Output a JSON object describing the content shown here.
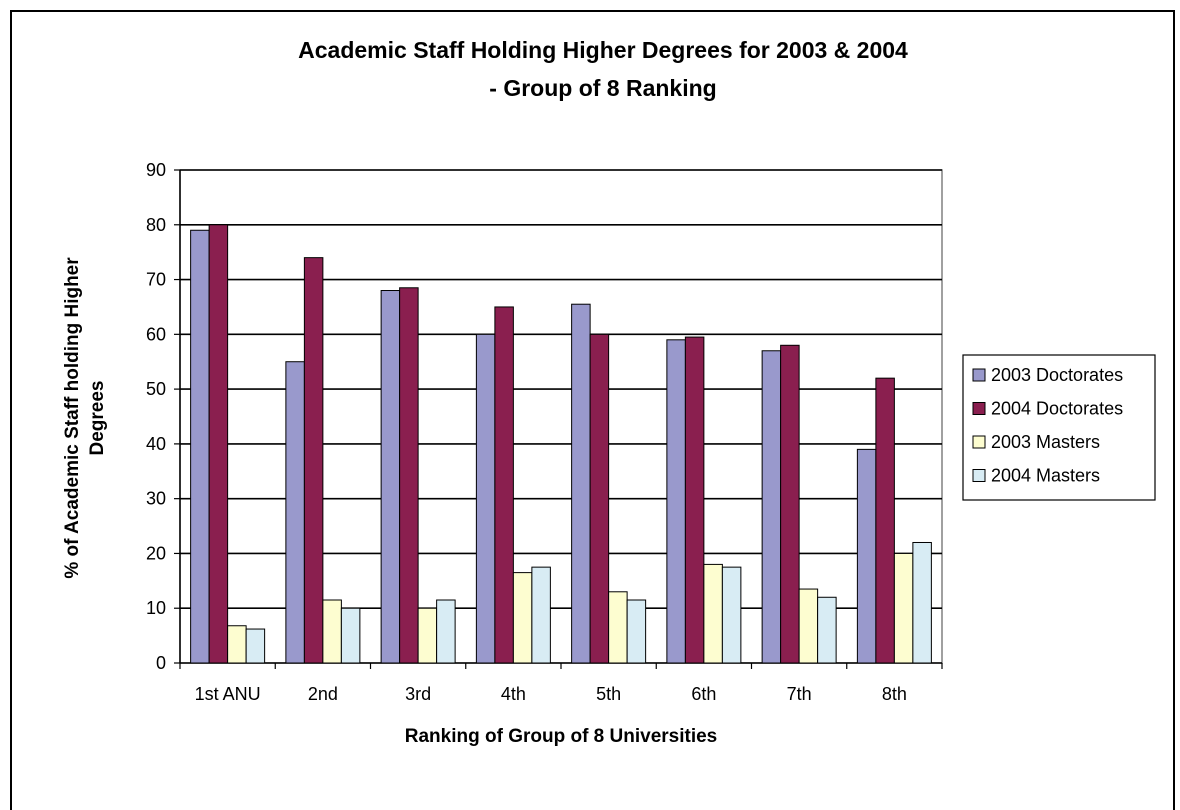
{
  "chart_data": {
    "type": "bar",
    "title": [
      "Academic Staff Holding Higher Degrees for 2003 & 2004",
      "- Group of 8 Ranking"
    ],
    "xlabel": "Ranking of Group of 8 Universities",
    "ylabel": [
      "% of Academic Staff holding Higher",
      "Degrees"
    ],
    "ylim": [
      0,
      90
    ],
    "yticks": [
      0,
      10,
      20,
      30,
      40,
      50,
      60,
      70,
      80,
      90
    ],
    "grid": true,
    "legend_position": "right",
    "categories": [
      "1st ANU",
      "2nd",
      "3rd",
      "4th",
      "5th",
      "6th",
      "7th",
      "8th"
    ],
    "series": [
      {
        "name": "2003 Doctorates",
        "color": "#9999cc",
        "values": [
          79,
          55,
          68,
          60,
          65.5,
          59,
          57,
          39
        ]
      },
      {
        "name": "2004 Doctorates",
        "color": "#8a1f4f",
        "values": [
          80,
          74,
          68.5,
          65,
          60,
          59.5,
          58,
          52
        ]
      },
      {
        "name": "2003 Masters",
        "color": "#fdfdd0",
        "values": [
          6.8,
          11.5,
          10,
          16.5,
          13,
          18,
          13.5,
          20
        ]
      },
      {
        "name": "2004 Masters",
        "color": "#d8ecf4",
        "values": [
          6.2,
          10,
          11.5,
          17.5,
          11.5,
          17.5,
          12,
          22
        ]
      }
    ]
  }
}
